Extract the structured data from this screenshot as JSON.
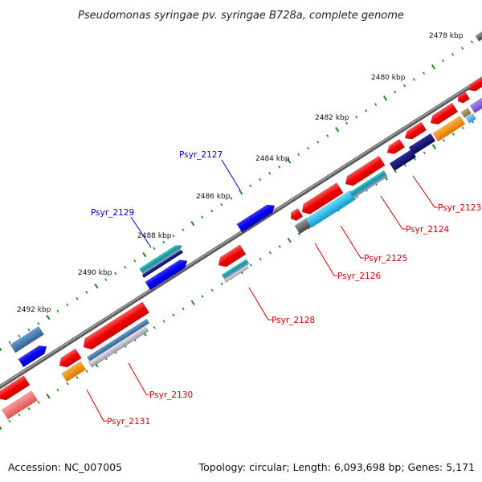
{
  "title": "Pseudomonas syringae pv. syringae B728a, complete genome",
  "accession_text": "Accession: NC_007005",
  "summary_text": "Topology: circular; Length: 6,093,698 bp; Genes: 5,171",
  "kbp_labels": [
    "2478 kbp",
    "2480 kbp",
    "2482 kbp",
    "2484 kbp",
    "2486 kbp",
    "2488 kbp",
    "2490 kbp",
    "2492 kbp"
  ],
  "gene_labels": [
    {
      "name": "Psyr_2123",
      "strand": "reverse",
      "color": "#cc0000"
    },
    {
      "name": "Psyr_2124",
      "strand": "reverse",
      "color": "#cc0000"
    },
    {
      "name": "Psyr_2125",
      "strand": "reverse",
      "color": "#cc0000"
    },
    {
      "name": "Psyr_2126",
      "strand": "reverse",
      "color": "#cc0000"
    },
    {
      "name": "Psyr_2127",
      "strand": "forward",
      "color": "#0000cc"
    },
    {
      "name": "Psyr_2128",
      "strand": "reverse",
      "color": "#cc0000"
    },
    {
      "name": "Psyr_2129",
      "strand": "forward",
      "color": "#0000cc"
    },
    {
      "name": "Psyr_2130",
      "strand": "reverse",
      "color": "#cc0000"
    },
    {
      "name": "Psyr_2131",
      "strand": "reverse",
      "color": "#cc0000"
    }
  ],
  "colors": {
    "backbone": "#6e6e6e",
    "tick_dots": "#1e8a1e",
    "forward_cds": "#0a0af0",
    "reverse_cds": "#ee1111",
    "navy": "#0d0d6e",
    "cyan": "#22bbee",
    "teal": "#1f9f9f",
    "steel_blue": "#3f72a8",
    "orange": "#ee8800",
    "pink": "#ee7777",
    "grey": "#666666",
    "light_grey": "#bbbbcc",
    "purple": "#8866dd"
  }
}
